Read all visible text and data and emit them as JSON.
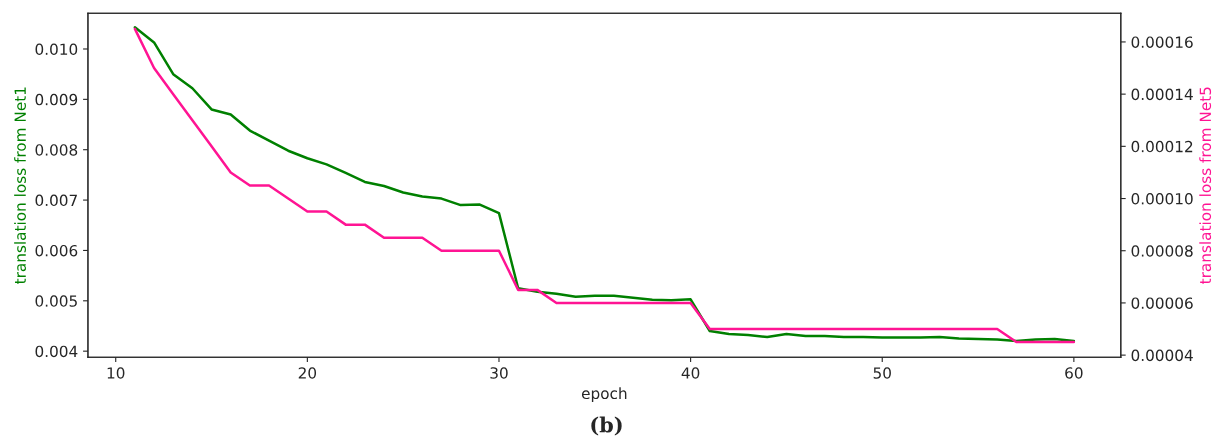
{
  "chart_data": {
    "type": "line",
    "xlabel": "epoch",
    "ylabel": "translation loss from Net1",
    "y2label": "translation loss from Net5",
    "x": [
      11,
      12,
      13,
      14,
      15,
      16,
      17,
      18,
      19,
      20,
      21,
      22,
      23,
      24,
      25,
      26,
      27,
      28,
      29,
      30,
      31,
      32,
      33,
      34,
      35,
      36,
      37,
      38,
      39,
      40,
      41,
      42,
      43,
      44,
      45,
      46,
      47,
      48,
      49,
      50,
      51,
      52,
      53,
      54,
      55,
      56,
      57,
      58,
      59,
      60
    ],
    "series": [
      {
        "color": "#008000",
        "values": [
          0.01043,
          0.01013,
          0.0095,
          0.00922,
          0.0088,
          0.0087,
          0.00838,
          0.00818,
          0.00798,
          0.00783,
          0.00771,
          0.00754,
          0.00736,
          0.00728,
          0.00715,
          0.00707,
          0.00703,
          0.0069,
          0.00691,
          0.00674,
          0.00525,
          0.00518,
          0.00514,
          0.00508,
          0.0051,
          0.0051,
          0.00506,
          0.00502,
          0.00501,
          0.00503,
          0.0044,
          0.00434,
          0.00432,
          0.00428,
          0.00434,
          0.0043,
          0.0043,
          0.00428,
          0.00428,
          0.00427,
          0.00427,
          0.00427,
          0.00428,
          0.00425,
          0.00424,
          0.00423,
          0.0042,
          0.00423,
          0.00424,
          0.0042
        ]
      },
      {
        "color": "#ff1493",
        "axis": "y2",
        "values": [
          0.000165,
          0.00015,
          0.00014,
          0.00013,
          0.00012,
          0.00011,
          0.000105,
          0.000105,
          0.0001,
          9.5e-05,
          9.5e-05,
          9e-05,
          9e-05,
          8.5e-05,
          8.5e-05,
          8.5e-05,
          8e-05,
          8e-05,
          8e-05,
          8e-05,
          6.5e-05,
          6.5e-05,
          6e-05,
          6e-05,
          6e-05,
          6e-05,
          6e-05,
          6e-05,
          6e-05,
          6e-05,
          5e-05,
          5e-05,
          5e-05,
          5e-05,
          5e-05,
          5e-05,
          5e-05,
          5e-05,
          5e-05,
          5e-05,
          5e-05,
          5e-05,
          5e-05,
          5e-05,
          5e-05,
          5e-05,
          4.5e-05,
          4.5e-05,
          4.5e-05,
          4.5e-05
        ]
      }
    ],
    "xlim": [
      8.55,
      62.45
    ],
    "xticks": [
      10,
      20,
      30,
      40,
      50,
      60
    ],
    "ylim": [
      0.00388,
      0.01071
    ],
    "yticks": [
      {
        "value": 0.004,
        "label": "0.004"
      },
      {
        "value": 0.005,
        "label": "0.005"
      },
      {
        "value": 0.006,
        "label": "0.006"
      },
      {
        "value": 0.007,
        "label": "0.007"
      },
      {
        "value": 0.008,
        "label": "0.008"
      },
      {
        "value": 0.009,
        "label": "0.009"
      },
      {
        "value": 0.01,
        "label": "0.010"
      }
    ],
    "y2lim": [
      3.92e-05,
      0.000171
    ],
    "y2ticks": [
      {
        "value": 4e-05,
        "label": "0.00004"
      },
      {
        "value": 6e-05,
        "label": "0.00006"
      },
      {
        "value": 8e-05,
        "label": "0.00008"
      },
      {
        "value": 0.0001,
        "label": "0.00010"
      },
      {
        "value": 0.00012,
        "label": "0.00012"
      },
      {
        "value": 0.00014,
        "label": "0.00014"
      },
      {
        "value": 0.00016,
        "label": "0.00016"
      }
    ],
    "grid": false,
    "marker": "none",
    "line_style": "solid",
    "annotations": [
      "(b)"
    ]
  }
}
